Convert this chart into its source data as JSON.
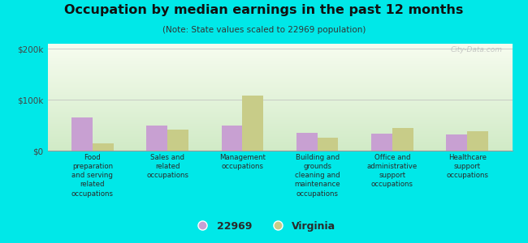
{
  "title": "Occupation by median earnings in the past 12 months",
  "subtitle": "(Note: State values scaled to 22969 population)",
  "categories": [
    "Food\npreparation\nand serving\nrelated\noccupations",
    "Sales and\nrelated\noccupations",
    "Management\noccupations",
    "Building and\ngrounds\ncleaning and\nmaintenance\noccupations",
    "Office and\nadministrative\nsupport\noccupations",
    "Healthcare\nsupport\noccupations"
  ],
  "values_22969": [
    65000,
    50000,
    50000,
    35000,
    33000,
    32000
  ],
  "values_virginia": [
    15000,
    42000,
    108000,
    25000,
    45000,
    38000
  ],
  "color_22969": "#c8a0d2",
  "color_virginia": "#c8cc88",
  "background_outer": "#00e8e8",
  "ylim": [
    0,
    210000
  ],
  "yticks": [
    0,
    100000,
    200000
  ],
  "ytick_labels": [
    "$0",
    "$100k",
    "$200k"
  ],
  "legend_label_1": "22969",
  "legend_label_2": "Virginia",
  "watermark": "City-Data.com"
}
